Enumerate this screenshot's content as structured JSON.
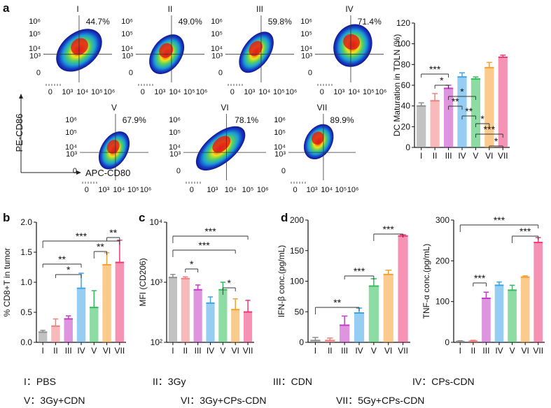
{
  "panel_labels": {
    "a": "a",
    "b": "b",
    "c": "c",
    "d": "d"
  },
  "flow": {
    "y_axis_label": "PE-CD86",
    "x_axis_label": "APC-CD80",
    "x_ticks": [
      "0",
      "10³",
      "10⁴",
      "10⁵",
      "10⁶"
    ],
    "y_ticks": [
      "10⁶",
      "10⁵",
      "10⁴",
      "10³",
      "0"
    ],
    "plots": [
      {
        "roman": "I",
        "percent": "44.7%"
      },
      {
        "roman": "II",
        "percent": "49.0%"
      },
      {
        "roman": "III",
        "percent": "59.8%"
      },
      {
        "roman": "IV",
        "percent": "71.4%"
      },
      {
        "roman": "V",
        "percent": "67.9%"
      },
      {
        "roman": "VI",
        "percent": "78.1%"
      },
      {
        "roman": "VII",
        "percent": "89.9%"
      }
    ]
  },
  "legend": [
    {
      "roman": "I",
      "name": "PBS"
    },
    {
      "roman": "II",
      "name": "3Gy"
    },
    {
      "roman": "III",
      "name": "CDN"
    },
    {
      "roman": "IV",
      "name": "CPs-CDN"
    },
    {
      "roman": "V",
      "name": "3Gy+CDN"
    },
    {
      "roman": "VI",
      "name": "3Gy+CPs-CDN"
    },
    {
      "roman": "VII",
      "name": "5Gy+CPs-CDN"
    }
  ],
  "legend_separator": "：",
  "colors": [
    "#8f8f8f",
    "#f08080",
    "#c43cc4",
    "#3ea6e8",
    "#2fbf5a",
    "#f5a030",
    "#ee3a78"
  ],
  "chart_data": [
    {
      "id": "a",
      "type": "bar",
      "categories": [
        "I",
        "II",
        "III",
        "IV",
        "V",
        "VI",
        "VII"
      ],
      "values": [
        40,
        45,
        57,
        68,
        66,
        77,
        87
      ],
      "errors": [
        3,
        7,
        3,
        4,
        2,
        5,
        2
      ],
      "ylabel": "DC Maturation in TDLN (%)",
      "ylim": [
        0,
        120
      ],
      "yticks": [
        "0",
        "20",
        "40",
        "60",
        "80",
        "100",
        "120"
      ],
      "significance": [
        "***",
        "*",
        "**",
        "*",
        "**",
        "*",
        "***",
        "*"
      ]
    },
    {
      "id": "b",
      "type": "bar",
      "categories": [
        "I",
        "II",
        "III",
        "IV",
        "V",
        "VI",
        "VII"
      ],
      "values": [
        0.17,
        0.27,
        0.39,
        0.9,
        0.58,
        1.29,
        1.33
      ],
      "errors": [
        0.03,
        0.12,
        0.05,
        0.25,
        0.28,
        0.2,
        0.37
      ],
      "ylabel": "% CD8+T in tumor",
      "ylim": [
        0,
        2.0
      ],
      "yticks": [
        "0.0",
        "0.5",
        "1.0",
        "1.5",
        "2.0"
      ],
      "significance": [
        "***",
        "**",
        "*",
        "**",
        "**"
      ]
    },
    {
      "id": "c",
      "type": "bar",
      "scale": "log",
      "categories": [
        "I",
        "II",
        "III",
        "IV",
        "V",
        "VI",
        "VII"
      ],
      "values": [
        1200,
        1150,
        750,
        450,
        750,
        350,
        320
      ],
      "errors": [
        150,
        80,
        150,
        120,
        250,
        180,
        180
      ],
      "ylabel": "MFI (CD206)",
      "ylim": [
        100,
        10000
      ],
      "yticks": [
        "10⁴",
        "10³",
        "10²"
      ],
      "significance": [
        "***",
        "***",
        "*",
        "*"
      ]
    },
    {
      "id": "d1",
      "type": "bar",
      "categories": [
        "I",
        "II",
        "III",
        "IV",
        "V",
        "VI",
        "VII"
      ],
      "values": [
        3,
        3,
        28,
        48,
        92,
        111,
        174
      ],
      "errors": [
        5,
        4,
        15,
        8,
        12,
        7,
        2
      ],
      "ylabel": "IFN-β conc.(pg/mL)",
      "ylim": [
        0,
        200
      ],
      "yticks": [
        "0",
        "50",
        "100",
        "150",
        "200"
      ],
      "significance": [
        "***",
        "***",
        "**"
      ]
    },
    {
      "id": "d2",
      "type": "bar",
      "categories": [
        "I",
        "II",
        "III",
        "IV",
        "V",
        "VI",
        "VII"
      ],
      "values": [
        2,
        3,
        108,
        140,
        128,
        160,
        245
      ],
      "errors": [
        2,
        2,
        15,
        8,
        12,
        3,
        12
      ],
      "ylabel": "TNF-α conc.(pg/mL)",
      "ylim": [
        0,
        300
      ],
      "yticks": [
        "0",
        "100",
        "200",
        "300"
      ],
      "significance": [
        "***",
        "***",
        "***"
      ]
    }
  ]
}
